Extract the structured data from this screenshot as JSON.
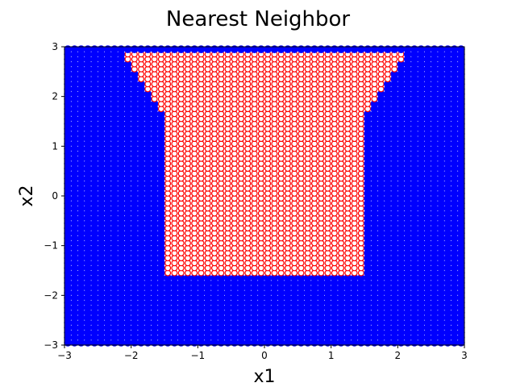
{
  "chart_data": {
    "type": "scatter",
    "title": "Nearest Neighbor",
    "xlabel": "x1",
    "ylabel": "x2",
    "xlim": [
      -3,
      3
    ],
    "ylim": [
      -3,
      3
    ],
    "xticks": [
      -3,
      -2,
      -1,
      0,
      1,
      2,
      3
    ],
    "yticks": [
      -3,
      -2,
      -1,
      0,
      1,
      2,
      3
    ],
    "xtick_labels": [
      "−3",
      "−2",
      "−1",
      "0",
      "1",
      "2",
      "3"
    ],
    "ytick_labels": [
      "−3",
      "−2",
      "−1",
      "0",
      "1",
      "2",
      "3"
    ],
    "grid": false,
    "grid_points": {
      "min": -2.95,
      "max": 2.95,
      "step": 0.1
    },
    "series": [
      {
        "color": "#0000ff",
        "marker": "filled-circle"
      },
      {
        "color": "#ff0000",
        "marker": "hollow-circle",
        "region_boundary": [
          [
            -2.2,
            2.95
          ],
          [
            2.2,
            2.95
          ],
          [
            1.5,
            1.6
          ],
          [
            1.5,
            -1.6
          ],
          [
            -1.5,
            -1.6
          ],
          [
            -1.5,
            1.6
          ]
        ]
      }
    ]
  }
}
